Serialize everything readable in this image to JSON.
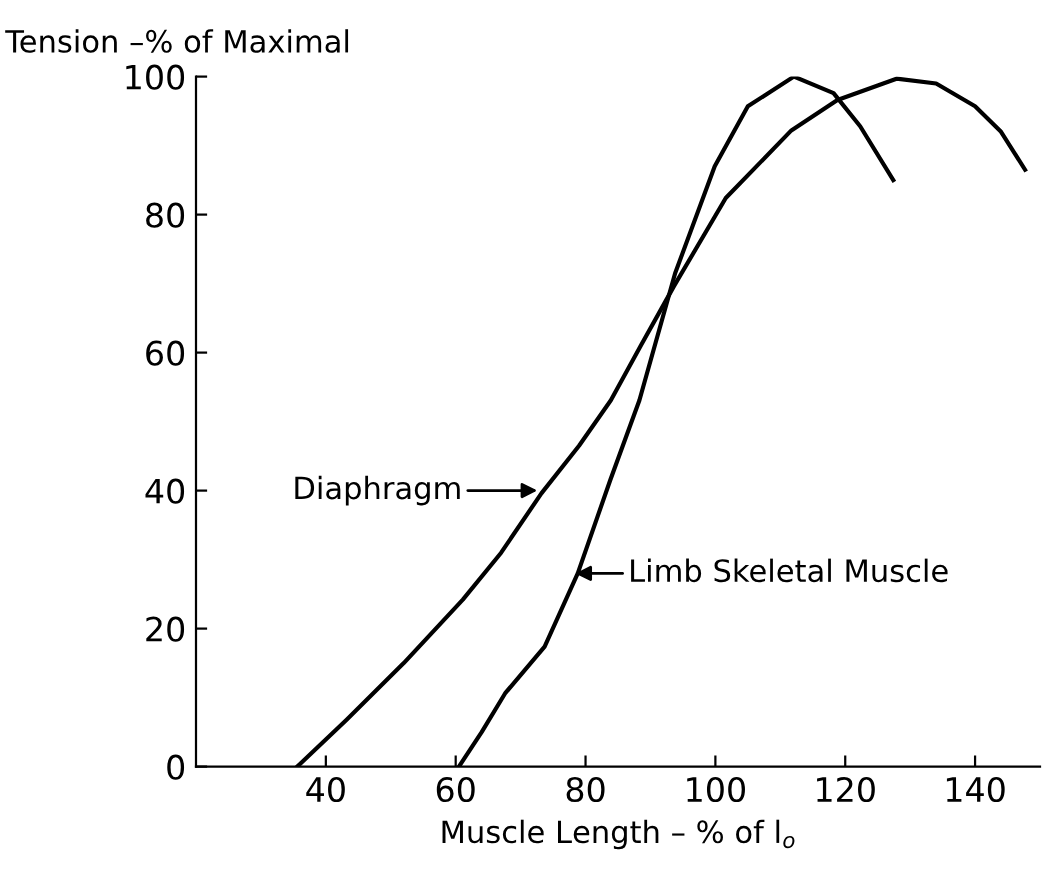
{
  "chart_data": {
    "type": "line",
    "xlabel": "Muscle Length – % of l$_{o}$",
    "ylabel": "Tension –% of Maximal",
    "xlim": [
      20,
      150
    ],
    "ylim": [
      0,
      100
    ],
    "xticks": [
      40,
      60,
      80,
      100,
      120,
      140
    ],
    "yticks": [
      0,
      20,
      40,
      60,
      80,
      100
    ],
    "grid": false,
    "marker": "none",
    "line_style": "solid",
    "series": [
      {
        "color": "#000000",
        "x": [
          35.6,
          43.2,
          52,
          61.1,
          67,
          73.2,
          79,
          83.9,
          88.5,
          93.6,
          101.6,
          111.7,
          118.8,
          127.9,
          134,
          140,
          144,
          147.7
        ],
        "values": [
          0,
          6.8,
          15,
          24.2,
          31,
          39.6,
          46.5,
          53.1,
          61,
          69.6,
          82.4,
          92.2,
          96.6,
          99.7,
          99,
          95.7,
          92,
          86.5
        ]
      },
      {
        "color": "#000000",
        "x": [
          60.5,
          64,
          67.6,
          73.7,
          78.8,
          83.8,
          88.3,
          93.8,
          99.9,
          105,
          112.1,
          118.2,
          122.3,
          127.4
        ],
        "values": [
          0,
          5,
          10.6,
          17.4,
          28,
          41.5,
          53.1,
          71.5,
          87,
          95.7,
          100,
          97.6,
          92.8,
          85
        ]
      }
    ],
    "annotations": [
      {
        "text": "Diaphragm",
        "x": 73,
        "y": 40
      },
      {
        "text": "Limb Skeletal Muscle",
        "x": 78,
        "y": 28
      }
    ]
  }
}
